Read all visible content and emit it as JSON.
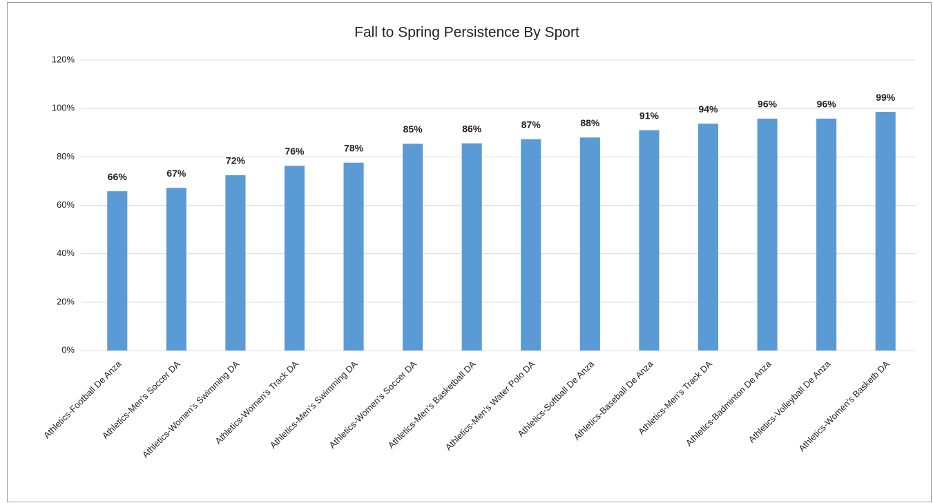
{
  "chart_data": {
    "type": "bar",
    "title": "Fall to Spring Persistence By Sport",
    "categories": [
      "Athletics-Football De Anza",
      "Athletics-Men's Soccer DA",
      "Athletics-Women's Swimming DA",
      "Athletics-Women's Track DA",
      "Athletics-Men's Swimming DA",
      "Athletics-Women's Soccer DA",
      "Athletics-Men's Basketball DA",
      "Athletics-Men's Water Polo DA",
      "Athletics-Softball De Anza",
      "Athletics-Baseball De Anza",
      "Athletics-Men's Track DA",
      "Athletics-Badminton De Anza",
      "Athletics-Volleyball De Anza",
      "Athletics-Women's Basketb DA"
    ],
    "values": [
      65.8,
      67.2,
      72.4,
      76.3,
      77.6,
      85.4,
      85.6,
      87.3,
      88.0,
      91.0,
      93.7,
      95.8,
      95.8,
      98.6
    ],
    "value_labels": [
      "66%",
      "67%",
      "72%",
      "76%",
      "78%",
      "85%",
      "86%",
      "87%",
      "88%",
      "91%",
      "94%",
      "96%",
      "96%",
      "99%"
    ],
    "color": "#5b9bd5",
    "ylim": [
      0,
      120
    ],
    "yticks": [
      {
        "value": 0,
        "label": "0%"
      },
      {
        "value": 20,
        "label": "20%"
      },
      {
        "value": 40,
        "label": "40%"
      },
      {
        "value": 60,
        "label": "60%"
      },
      {
        "value": 80,
        "label": "80%"
      },
      {
        "value": 100,
        "label": "100%"
      },
      {
        "value": 120,
        "label": "120%"
      }
    ],
    "grid": true
  }
}
